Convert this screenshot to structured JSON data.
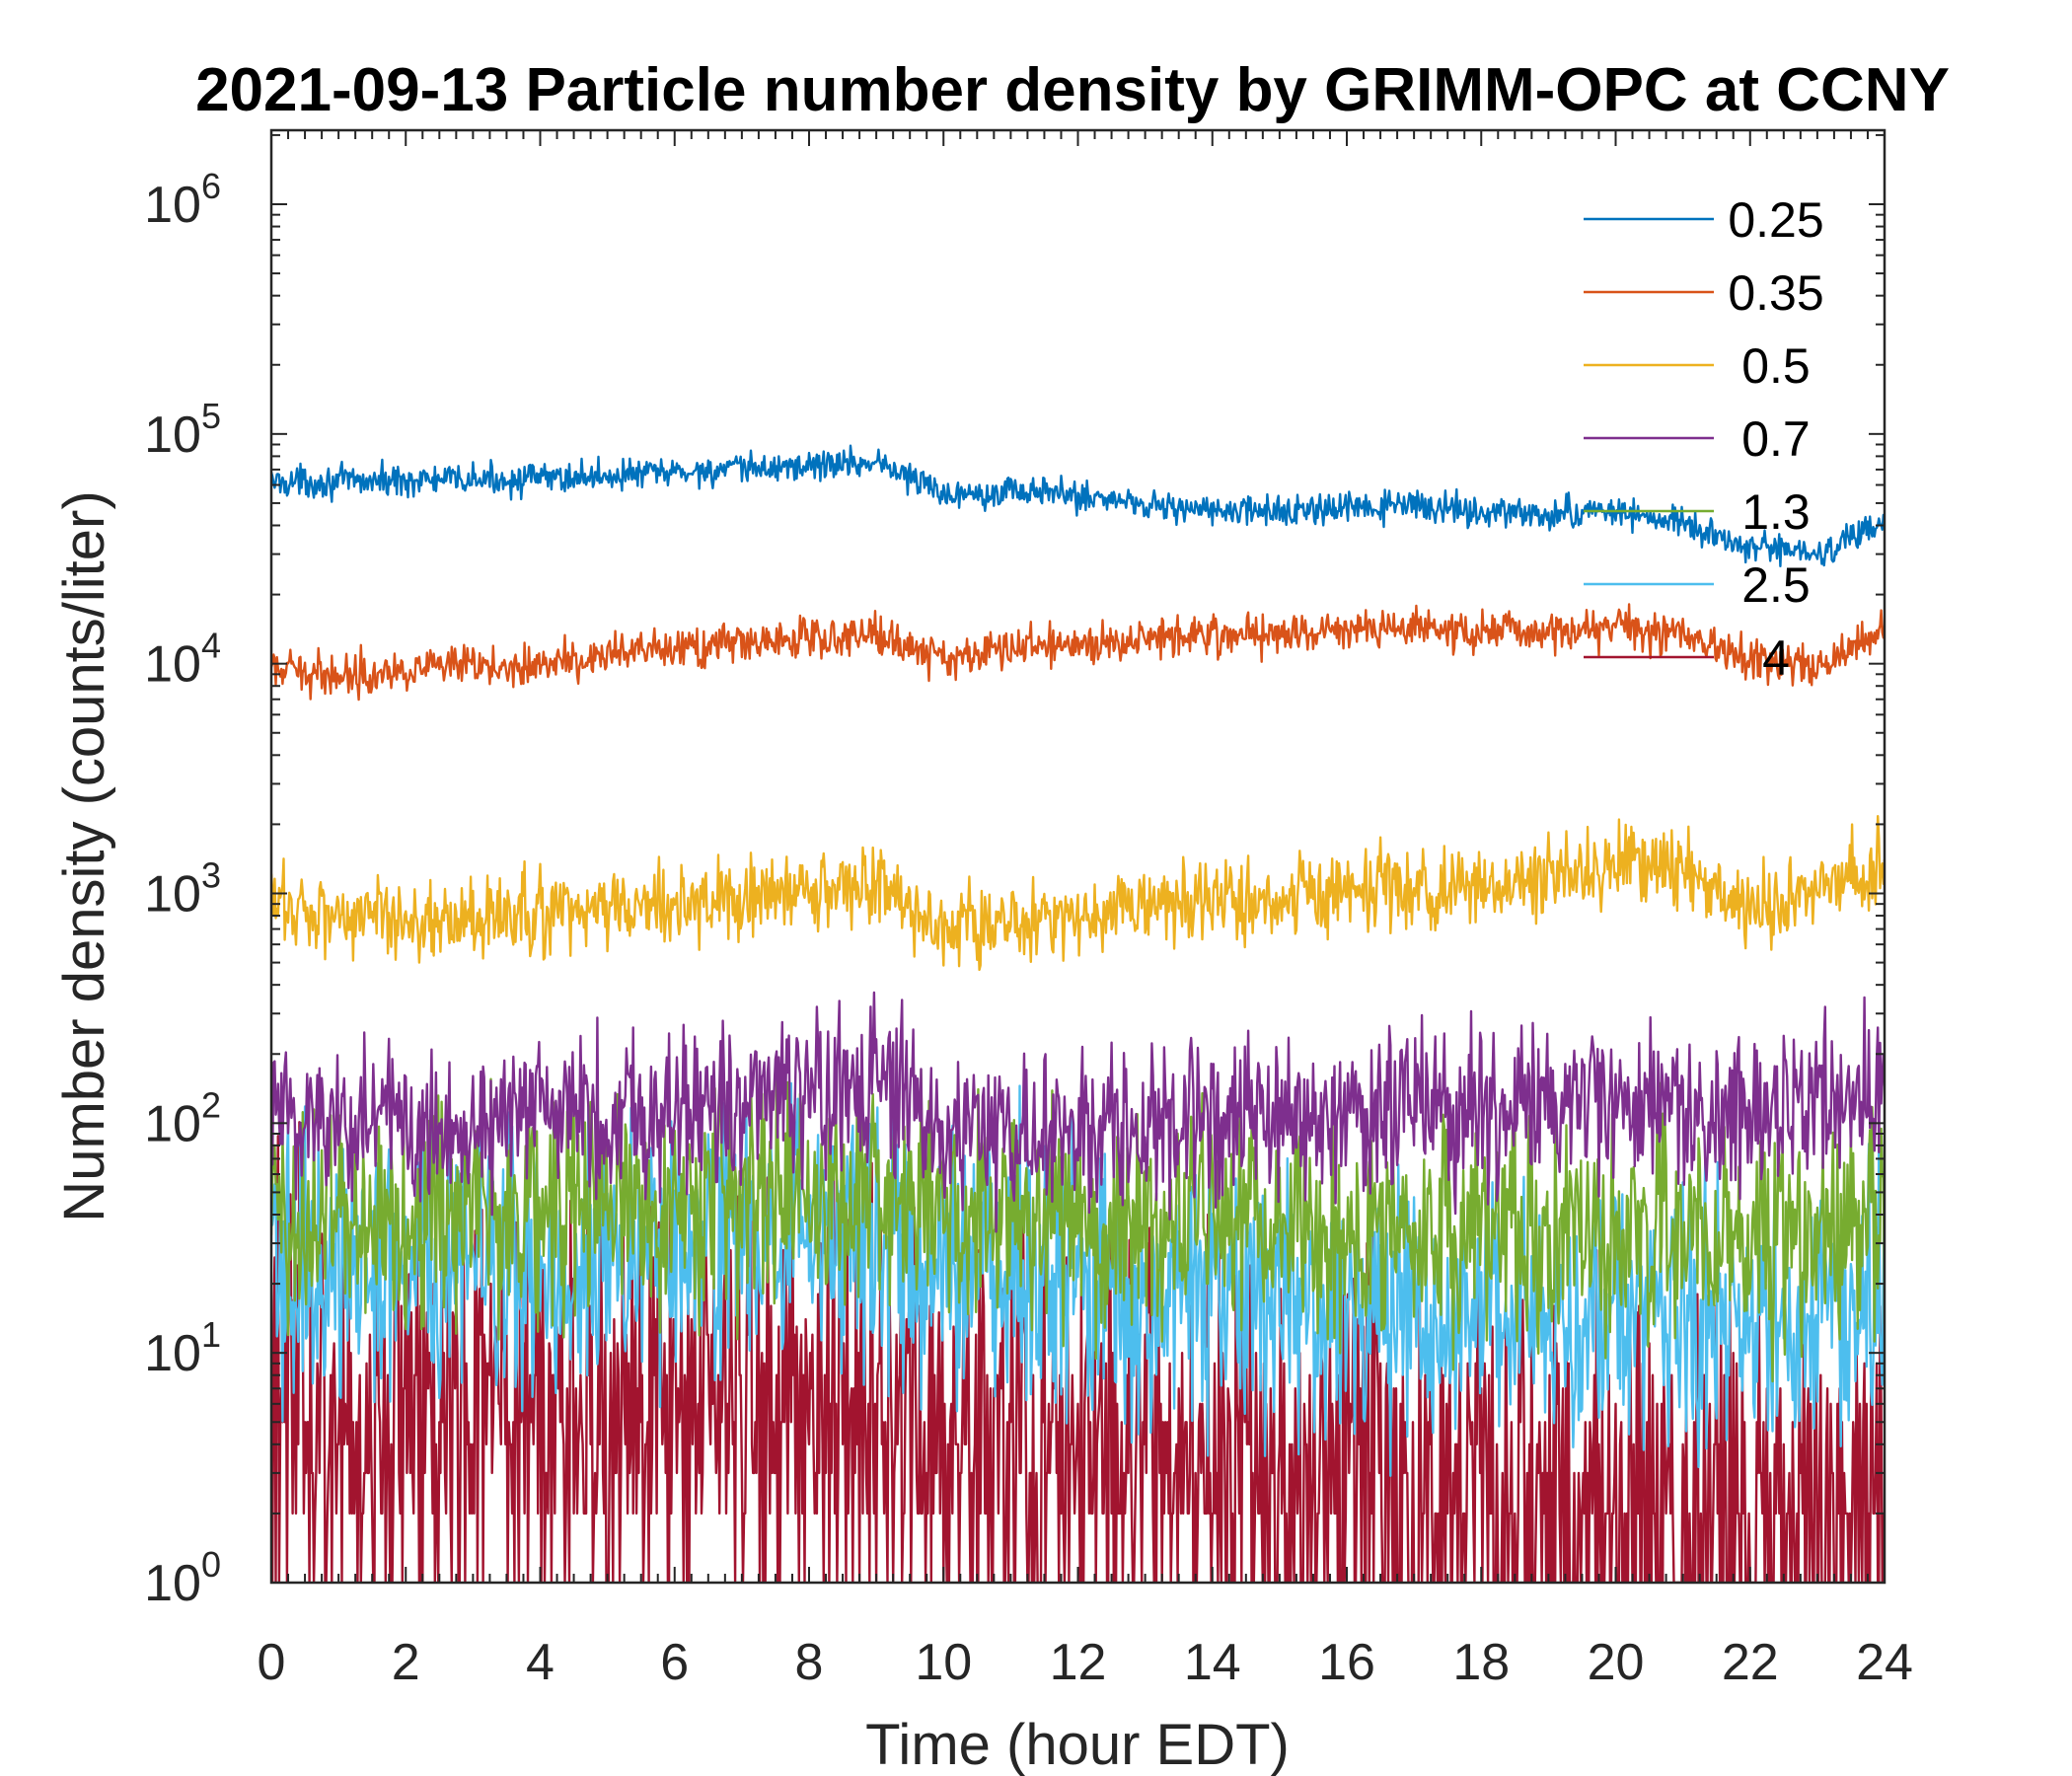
{
  "chart_data": {
    "type": "line",
    "title": "2021-09-13 Particle number density by GRIMM-OPC at CCNY",
    "xlabel": "Time (hour EDT)",
    "ylabel": "Number density (counts/liter)",
    "xlim": [
      0,
      24
    ],
    "ylim": [
      1,
      2000000
    ],
    "yscale": "log",
    "xticks": [
      0,
      2,
      4,
      6,
      8,
      10,
      12,
      14,
      16,
      18,
      20,
      22,
      24
    ],
    "xtick_labels": [
      "0",
      "2",
      "4",
      "6",
      "8",
      "10",
      "12",
      "14",
      "16",
      "18",
      "20",
      "22",
      "24"
    ],
    "yticks": [
      1,
      10,
      100,
      1000,
      10000,
      100000,
      1000000
    ],
    "ytick_labels": [
      {
        "base": "10",
        "exp": "0"
      },
      {
        "base": "10",
        "exp": "1"
      },
      {
        "base": "10",
        "exp": "2"
      },
      {
        "base": "10",
        "exp": "3"
      },
      {
        "base": "10",
        "exp": "4"
      },
      {
        "base": "10",
        "exp": "5"
      },
      {
        "base": "10",
        "exp": "6"
      }
    ],
    "grid": false,
    "legend_position": "top-right",
    "x": [
      0,
      1,
      2,
      3,
      4,
      5,
      6,
      7,
      8,
      9,
      10,
      11,
      12,
      13,
      14,
      15,
      16,
      17,
      18,
      19,
      20,
      21,
      22,
      23,
      24
    ],
    "series": [
      {
        "name": "0.25",
        "color": "#0072BD",
        "noise": 0.015,
        "values": [
          62000,
          62000,
          63000,
          63000,
          64000,
          66000,
          68000,
          70000,
          73000,
          76000,
          55000,
          57000,
          54000,
          50000,
          46000,
          46000,
          47000,
          49000,
          46000,
          44000,
          47000,
          40000,
          32000,
          30000,
          41000
        ]
      },
      {
        "name": "0.35",
        "color": "#D95319",
        "noise": 0.02,
        "values": [
          9300,
          9000,
          9500,
          9600,
          10000,
          10800,
          11500,
          12300,
          13000,
          13500,
          10500,
          11800,
          12000,
          13200,
          13500,
          13600,
          14000,
          14300,
          13700,
          14000,
          14500,
          13500,
          10500,
          9500,
          14500
        ]
      },
      {
        "name": "0.5",
        "color": "#EDB120",
        "noise": 0.04,
        "values": [
          900,
          820,
          780,
          760,
          800,
          860,
          900,
          950,
          1000,
          1100,
          680,
          760,
          800,
          880,
          920,
          960,
          1000,
          1050,
          1050,
          1100,
          1400,
          1200,
          900,
          1000,
          1400
        ]
      },
      {
        "name": "0.7",
        "color": "#7E2F8E",
        "noise": 0.08,
        "values": [
          110,
          105,
          100,
          105,
          108,
          112,
          118,
          125,
          130,
          140,
          95,
          90,
          88,
          95,
          100,
          102,
          105,
          108,
          110,
          112,
          120,
          115,
          110,
          120,
          150
        ]
      },
      {
        "name": "1.3",
        "color": "#77AC30",
        "noise": 0.11,
        "values": [
          38,
          40,
          40,
          42,
          42,
          44,
          46,
          48,
          50,
          50,
          42,
          40,
          38,
          38,
          36,
          34,
          33,
          33,
          34,
          33,
          35,
          34,
          33,
          33,
          45
        ]
      },
      {
        "name": "2.5",
        "color": "#4DBEEE",
        "noise": 0.13,
        "values": [
          22,
          24,
          24,
          25,
          26,
          27,
          28,
          30,
          30,
          28,
          25,
          22,
          20,
          18,
          17,
          16,
          15,
          15,
          15,
          15,
          16,
          15,
          14,
          14,
          16
        ]
      },
      {
        "name": "4",
        "color": "#A2142F",
        "noise": 0.22,
        "values": [
          5.5,
          5.5,
          5,
          5,
          5,
          5.5,
          6,
          6.5,
          7,
          6.5,
          4.5,
          4,
          3.8,
          3.5,
          3,
          2.8,
          2.6,
          2.5,
          2.3,
          2.1,
          2,
          2,
          1.9,
          1.8,
          1.8
        ]
      }
    ]
  }
}
